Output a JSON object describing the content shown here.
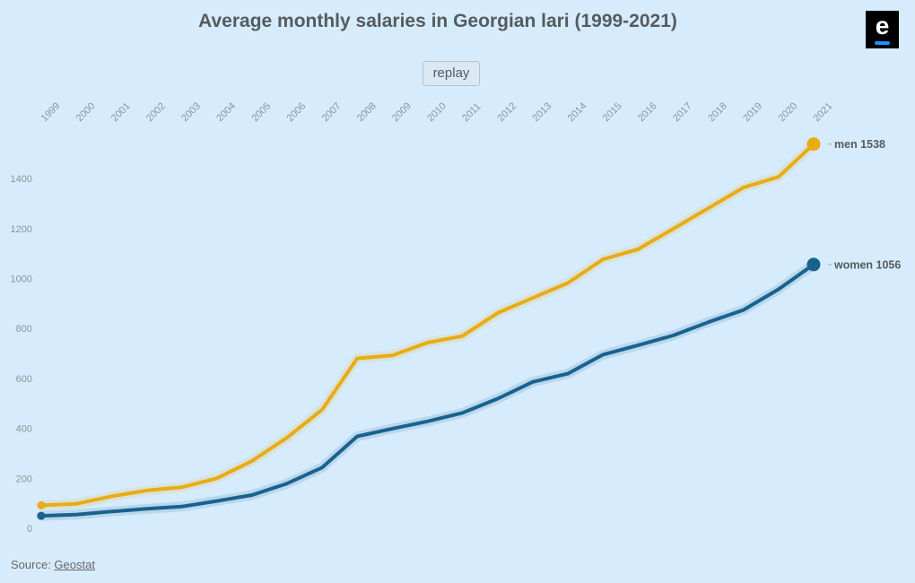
{
  "header": {
    "title": "Average monthly salaries in Georgian lari (1999-2021)",
    "replay_label": "replay",
    "logo_icon": "eurasianet-e-logo-icon"
  },
  "footer": {
    "source_prefix": "Source: ",
    "source_link": "Geostat"
  },
  "chart_data": {
    "type": "line",
    "title": "Average monthly salaries in Georgian lari (1999-2021)",
    "xlabel": "",
    "ylabel": "",
    "x": [
      "1999",
      "2000",
      "2001",
      "2002",
      "2003",
      "2004",
      "2005",
      "2006",
      "2007",
      "2008",
      "2009",
      "2010",
      "2011",
      "2012",
      "2013",
      "2014",
      "2015",
      "2016",
      "2017",
      "2018",
      "2019",
      "2020",
      "2021"
    ],
    "ylim": [
      0,
      1550
    ],
    "yticks": [
      0,
      200,
      400,
      600,
      800,
      1000,
      1200,
      1400
    ],
    "grid": false,
    "series": [
      {
        "name": "men",
        "color": "#e8ac14",
        "end_label": "men 1538",
        "values": [
          92,
          98,
          128,
          151,
          164,
          200,
          269,
          363,
          475,
          680,
          692,
          743,
          770,
          862,
          922,
          982,
          1077,
          1117,
          1199,
          1281,
          1364,
          1407,
          1538
        ]
      },
      {
        "name": "women",
        "color": "#19628f",
        "end_label": "women 1056",
        "values": [
          50,
          55,
          67,
          78,
          87,
          109,
          133,
          179,
          243,
          368,
          399,
          428,
          462,
          519,
          586,
          619,
          695,
          733,
          772,
          825,
          874,
          957,
          1056
        ]
      }
    ]
  }
}
